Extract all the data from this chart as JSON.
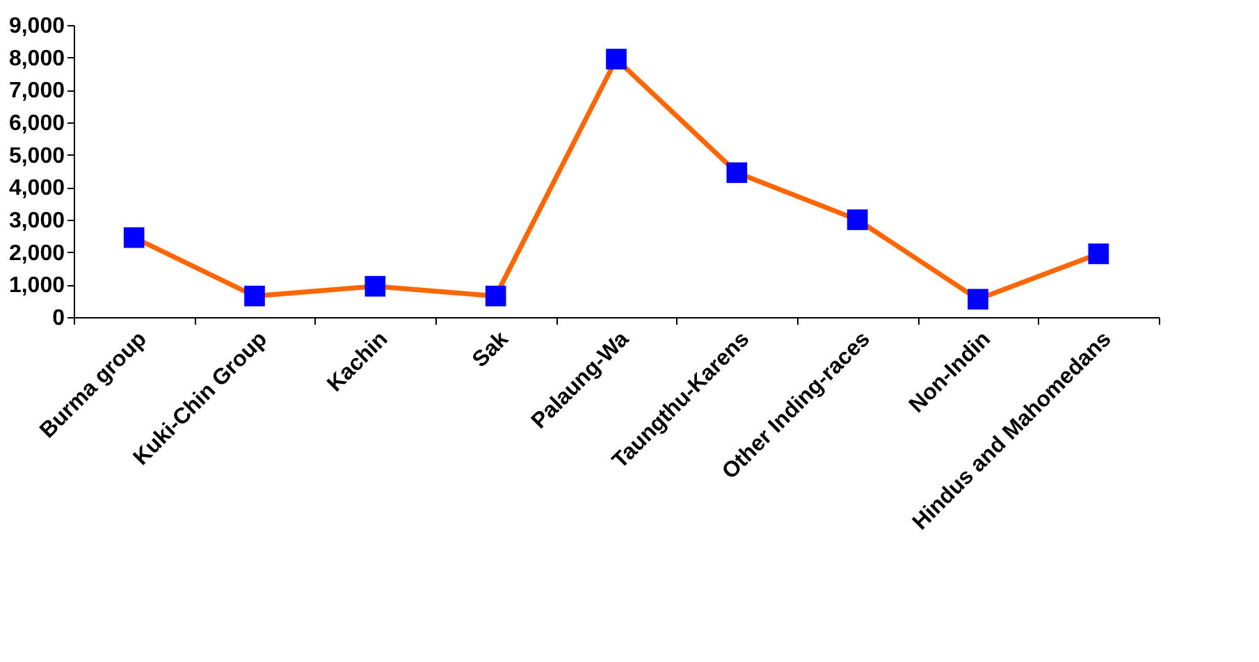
{
  "chart_data": {
    "type": "line",
    "categories": [
      "Burma group",
      "Kuki-Chin Group",
      "Kachin",
      "Sak",
      "Palaung-Wa",
      "Taungthu-Karens",
      "Other Inding-races",
      "Non-Indin",
      "Hindus and Mahomedans"
    ],
    "series": [
      {
        "color": "#ff6600",
        "values": [
          2450,
          650,
          950,
          650,
          7950,
          4450,
          3000,
          550,
          1950
        ]
      }
    ],
    "ylim": [
      0,
      9000
    ],
    "yticks": [
      {
        "value": 0,
        "label": "0"
      },
      {
        "value": 1000,
        "label": "1,000"
      },
      {
        "value": 2000,
        "label": "2,000"
      },
      {
        "value": 3000,
        "label": "3,000"
      },
      {
        "value": 4000,
        "label": "4,000"
      },
      {
        "value": 5000,
        "label": "5,000"
      },
      {
        "value": 6000,
        "label": "6,000"
      },
      {
        "value": 7000,
        "label": "7,000"
      },
      {
        "value": 8000,
        "label": "8,000"
      },
      {
        "value": 9000,
        "label": "9,000"
      }
    ],
    "grid": false,
    "marker": "square",
    "line_style": "solid"
  }
}
